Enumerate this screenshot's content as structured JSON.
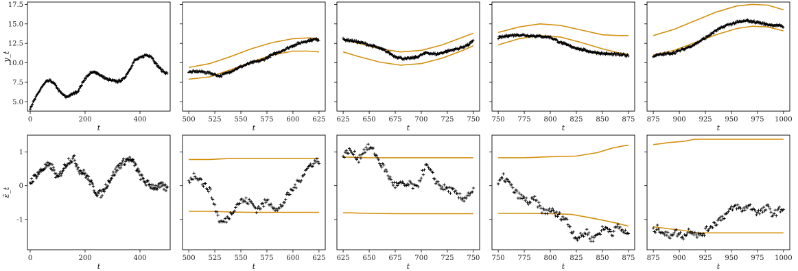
{
  "colors": {
    "band": "#D4900F",
    "data": "#000000"
  },
  "chart_data": [
    {
      "id": "top-0",
      "type": "line",
      "xlim": [
        -10,
        510
      ],
      "ylim": [
        3.8,
        17.8
      ],
      "xticks": [
        0,
        200,
        400
      ],
      "yticks": [
        5.0,
        7.5,
        10.0,
        12.5,
        15.0,
        17.5
      ],
      "xlabel": "t",
      "ylabel": "y_t",
      "series": [
        {
          "x": [
            0,
            20,
            40,
            60,
            75,
            90,
            110,
            130,
            150,
            175,
            200,
            220,
            240,
            260,
            280,
            300,
            320,
            340,
            360,
            380,
            400,
            420,
            440,
            460,
            480,
            500
          ],
          "y": [
            4.2,
            5.5,
            6.8,
            7.6,
            7.7,
            7.2,
            6.2,
            5.6,
            5.9,
            6.4,
            8.0,
            8.7,
            8.8,
            8.3,
            7.9,
            7.7,
            7.6,
            7.9,
            9.0,
            10.3,
            10.6,
            11.0,
            10.9,
            9.8,
            9.0,
            8.6
          ]
        }
      ]
    },
    {
      "id": "top-1",
      "type": "line",
      "xlim": [
        494,
        631
      ],
      "ylim": [
        3.8,
        17.8
      ],
      "xticks": [
        500,
        525,
        550,
        575,
        600,
        625
      ],
      "yticks": [
        5.0,
        7.5,
        10.0,
        12.5,
        15.0,
        17.5
      ],
      "xlabel": "t",
      "series": [
        {
          "x": [
            500,
            510,
            520,
            530,
            540,
            550,
            560,
            570,
            580,
            590,
            600,
            610,
            620,
            625
          ],
          "y": [
            8.8,
            8.9,
            8.7,
            8.3,
            8.9,
            9.5,
            10.0,
            10.3,
            11.0,
            11.6,
            12.2,
            12.7,
            13.0,
            13.0
          ]
        }
      ],
      "bands": [
        {
          "x": [
            500,
            520,
            540,
            560,
            580,
            600,
            615,
            625
          ],
          "y": [
            9.4,
            9.9,
            10.8,
            11.8,
            12.6,
            13.1,
            13.2,
            13.1
          ]
        },
        {
          "x": [
            500,
            520,
            540,
            560,
            580,
            600,
            615,
            625
          ],
          "y": [
            7.9,
            8.2,
            9.1,
            10.1,
            11.0,
            11.5,
            11.5,
            11.4
          ]
        }
      ]
    },
    {
      "id": "top-2",
      "type": "line",
      "xlim": [
        619,
        756
      ],
      "ylim": [
        3.8,
        17.8
      ],
      "xticks": [
        625,
        650,
        675,
        700,
        725,
        750
      ],
      "yticks": [
        5.0,
        7.5,
        10.0,
        12.5,
        15.0,
        17.5
      ],
      "xlabel": "t",
      "series": [
        {
          "x": [
            625,
            635,
            645,
            655,
            665,
            675,
            685,
            695,
            705,
            715,
            725,
            735,
            745,
            750
          ],
          "y": [
            13.0,
            12.8,
            12.5,
            12.1,
            11.6,
            10.8,
            10.5,
            10.7,
            11.3,
            11.1,
            11.5,
            11.8,
            12.3,
            12.8
          ]
        }
      ],
      "bands": [
        {
          "x": [
            625,
            640,
            660,
            680,
            700,
            720,
            740,
            750
          ],
          "y": [
            13.0,
            12.5,
            11.8,
            11.4,
            11.6,
            12.3,
            13.3,
            13.8
          ]
        },
        {
          "x": [
            625,
            640,
            660,
            680,
            700,
            720,
            740,
            750
          ],
          "y": [
            11.4,
            10.8,
            10.1,
            9.7,
            9.9,
            10.6,
            11.6,
            12.2
          ]
        }
      ]
    },
    {
      "id": "top-3",
      "type": "line",
      "xlim": [
        744,
        881
      ],
      "ylim": [
        3.8,
        17.8
      ],
      "xticks": [
        750,
        775,
        800,
        825,
        850,
        875
      ],
      "yticks": [
        5.0,
        7.5,
        10.0,
        12.5,
        15.0,
        17.5
      ],
      "xlabel": "t",
      "series": [
        {
          "x": [
            750,
            760,
            770,
            780,
            790,
            800,
            810,
            820,
            830,
            840,
            850,
            860,
            870,
            875
          ],
          "y": [
            13.2,
            13.5,
            13.6,
            13.5,
            13.4,
            13.3,
            12.6,
            12.1,
            11.7,
            11.4,
            11.2,
            11.1,
            11.0,
            10.9
          ]
        }
      ],
      "bands": [
        {
          "x": [
            750,
            770,
            790,
            810,
            830,
            850,
            865,
            875
          ],
          "y": [
            13.9,
            14.6,
            15.0,
            14.8,
            14.2,
            13.6,
            13.5,
            13.5
          ]
        },
        {
          "x": [
            750,
            770,
            790,
            810,
            830,
            850,
            865,
            875
          ],
          "y": [
            12.3,
            13.1,
            13.5,
            13.3,
            12.6,
            11.8,
            11.3,
            11.1
          ]
        }
      ]
    },
    {
      "id": "top-4",
      "type": "line",
      "xlim": [
        869,
        1006
      ],
      "ylim": [
        3.8,
        17.8
      ],
      "xticks": [
        875,
        900,
        925,
        950,
        975,
        1000
      ],
      "yticks": [
        5.0,
        7.5,
        10.0,
        12.5,
        15.0,
        17.5
      ],
      "xlabel": "t",
      "series": [
        {
          "x": [
            875,
            885,
            895,
            905,
            915,
            925,
            935,
            945,
            955,
            965,
            975,
            985,
            995,
            1000
          ],
          "y": [
            10.9,
            11.1,
            11.3,
            11.8,
            12.4,
            13.2,
            14.1,
            14.8,
            15.2,
            15.4,
            15.2,
            14.9,
            14.8,
            14.6
          ]
        }
      ],
      "bands": [
        {
          "x": [
            875,
            895,
            915,
            935,
            955,
            970,
            985,
            1000
          ],
          "y": [
            13.5,
            14.3,
            15.4,
            16.5,
            17.3,
            17.5,
            17.4,
            16.8
          ]
        },
        {
          "x": [
            875,
            895,
            915,
            935,
            955,
            970,
            985,
            1000
          ],
          "y": [
            11.0,
            11.6,
            12.6,
            13.6,
            14.4,
            14.7,
            14.6,
            14.1
          ]
        }
      ]
    },
    {
      "id": "bot-0",
      "type": "scatter",
      "xlim": [
        -10,
        510
      ],
      "ylim": [
        -1.9,
        1.5
      ],
      "xticks": [
        0,
        200,
        400
      ],
      "yticks": [
        -1,
        0,
        1
      ],
      "xlabel": "t",
      "ylabel": "ε̂_t",
      "series": [
        {
          "x": [
            0,
            20,
            40,
            60,
            80,
            100,
            120,
            140,
            160,
            180,
            200,
            220,
            240,
            260,
            280,
            300,
            320,
            340,
            360,
            380,
            400,
            420,
            440,
            460,
            480,
            500
          ],
          "y": [
            0.1,
            0.3,
            0.45,
            0.6,
            0.55,
            0.2,
            0.5,
            0.75,
            0.8,
            0.45,
            0.35,
            0.1,
            -0.2,
            -0.25,
            0.05,
            0.3,
            0.55,
            0.7,
            0.8,
            0.65,
            0.3,
            0.1,
            0.0,
            -0.05,
            0.0,
            -0.1
          ]
        }
      ]
    },
    {
      "id": "bot-1",
      "type": "scatter",
      "xlim": [
        494,
        631
      ],
      "ylim": [
        -1.9,
        1.5
      ],
      "xticks": [
        500,
        525,
        550,
        575,
        600,
        625
      ],
      "yticks": [
        -1,
        0,
        1
      ],
      "xlabel": "t",
      "series": [
        {
          "x": [
            500,
            505,
            510,
            515,
            520,
            525,
            530,
            535,
            540,
            545,
            550,
            555,
            560,
            565,
            570,
            575,
            580,
            585,
            590,
            595,
            600,
            605,
            610,
            615,
            620,
            625
          ],
          "y": [
            0.15,
            0.3,
            0.25,
            0.0,
            -0.1,
            -0.6,
            -1.1,
            -1.05,
            -0.85,
            -0.6,
            -0.45,
            -0.45,
            -0.5,
            -0.7,
            -0.6,
            -0.45,
            -0.55,
            -0.75,
            -0.55,
            -0.3,
            -0.1,
            0.1,
            0.35,
            0.55,
            0.7,
            0.75
          ]
        }
      ],
      "bands": [
        {
          "x": [
            500,
            520,
            540,
            560,
            580,
            600,
            625
          ],
          "y": [
            0.78,
            0.78,
            0.81,
            0.81,
            0.81,
            0.81,
            0.81
          ]
        },
        {
          "x": [
            500,
            520,
            540,
            560,
            580,
            600,
            625
          ],
          "y": [
            -0.76,
            -0.76,
            -0.78,
            -0.79,
            -0.79,
            -0.79,
            -0.79
          ]
        }
      ]
    },
    {
      "id": "bot-2",
      "type": "scatter",
      "xlim": [
        619,
        756
      ],
      "ylim": [
        -1.9,
        1.5
      ],
      "xticks": [
        625,
        650,
        675,
        700,
        725,
        750
      ],
      "yticks": [
        -1,
        0,
        1
      ],
      "xlabel": "t",
      "series": [
        {
          "x": [
            625,
            630,
            635,
            640,
            645,
            650,
            655,
            660,
            665,
            670,
            675,
            680,
            685,
            690,
            695,
            700,
            705,
            710,
            715,
            720,
            725,
            730,
            735,
            740,
            745,
            750
          ],
          "y": [
            0.85,
            1.05,
            0.95,
            0.8,
            1.05,
            1.15,
            1.0,
            0.7,
            0.5,
            0.2,
            0.0,
            0.05,
            0.0,
            0.05,
            -0.1,
            0.3,
            0.6,
            0.35,
            0.1,
            -0.05,
            -0.1,
            -0.15,
            -0.3,
            -0.4,
            -0.25,
            -0.15
          ]
        }
      ],
      "bands": [
        {
          "x": [
            625,
            650,
            675,
            700,
            725,
            750
          ],
          "y": [
            0.85,
            0.83,
            0.83,
            0.83,
            0.83,
            0.83
          ]
        },
        {
          "x": [
            625,
            650,
            675,
            700,
            725,
            750
          ],
          "y": [
            -0.8,
            -0.82,
            -0.83,
            -0.83,
            -0.83,
            -0.83
          ]
        }
      ]
    },
    {
      "id": "bot-3",
      "type": "scatter",
      "xlim": [
        744,
        881
      ],
      "ylim": [
        -1.9,
        1.5
      ],
      "xticks": [
        750,
        775,
        800,
        825,
        850,
        875
      ],
      "yticks": [
        -1,
        0,
        1
      ],
      "xlabel": "t",
      "series": [
        {
          "x": [
            750,
            755,
            760,
            765,
            770,
            775,
            780,
            785,
            790,
            795,
            800,
            805,
            810,
            815,
            820,
            825,
            830,
            835,
            840,
            845,
            850,
            855,
            860,
            865,
            870,
            875
          ],
          "y": [
            0.05,
            0.25,
            0.1,
            -0.15,
            -0.3,
            -0.4,
            -0.5,
            -0.4,
            -0.65,
            -0.8,
            -0.7,
            -0.85,
            -0.9,
            -1.0,
            -1.3,
            -1.55,
            -1.5,
            -1.35,
            -1.6,
            -1.45,
            -1.3,
            -1.25,
            -1.4,
            -1.2,
            -1.35,
            -1.45
          ]
        }
      ],
      "bands": [
        {
          "x": [
            750,
            775,
            800,
            825,
            845,
            860,
            870,
            875
          ],
          "y": [
            0.83,
            0.83,
            0.86,
            0.88,
            0.98,
            1.12,
            1.18,
            1.2
          ]
        },
        {
          "x": [
            750,
            775,
            800,
            820,
            835,
            850,
            865,
            875
          ],
          "y": [
            -0.82,
            -0.82,
            -0.83,
            -0.85,
            -0.93,
            -1.02,
            -1.12,
            -1.2
          ]
        }
      ]
    },
    {
      "id": "bot-4",
      "type": "scatter",
      "xlim": [
        869,
        1006
      ],
      "ylim": [
        -1.9,
        1.5
      ],
      "xticks": [
        875,
        900,
        925,
        950,
        975,
        1000
      ],
      "yticks": [
        -1,
        0,
        1
      ],
      "xlabel": "t",
      "series": [
        {
          "x": [
            875,
            880,
            885,
            890,
            895,
            900,
            905,
            910,
            915,
            920,
            925,
            930,
            935,
            940,
            945,
            950,
            955,
            960,
            965,
            970,
            975,
            980,
            985,
            990,
            995,
            1000
          ],
          "y": [
            -1.35,
            -1.25,
            -1.4,
            -1.5,
            -1.35,
            -1.45,
            -1.5,
            -1.3,
            -1.4,
            -1.5,
            -1.35,
            -1.2,
            -1.1,
            -0.95,
            -0.85,
            -0.7,
            -0.6,
            -0.75,
            -0.6,
            -0.65,
            -0.8,
            -0.75,
            -0.65,
            -0.85,
            -0.75,
            -0.65
          ]
        }
      ],
      "bands": [
        {
          "x": [
            875,
            890,
            905,
            915,
            935,
            960,
            1000
          ],
          "y": [
            1.22,
            1.28,
            1.32,
            1.38,
            1.38,
            1.38,
            1.38
          ]
        },
        {
          "x": [
            875,
            890,
            905,
            915,
            935,
            960,
            1000
          ],
          "y": [
            -1.22,
            -1.28,
            -1.33,
            -1.4,
            -1.4,
            -1.4,
            -1.4
          ]
        }
      ]
    }
  ]
}
